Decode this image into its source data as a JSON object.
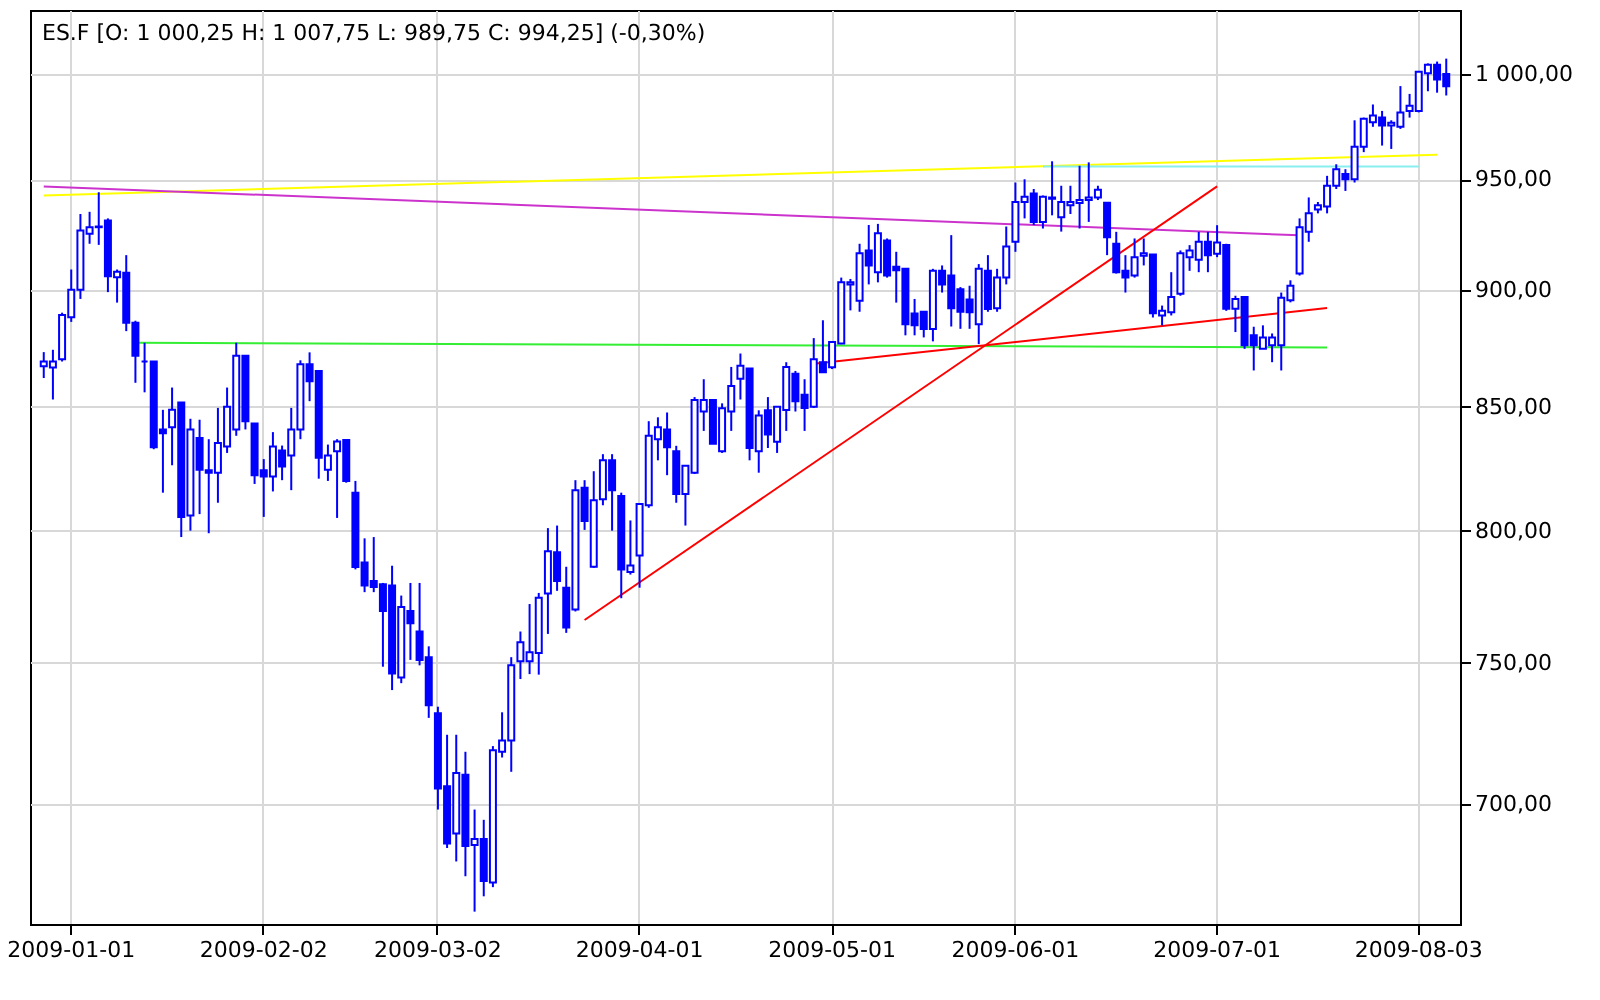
{
  "chart_data": {
    "type": "candlestick",
    "title": "ES.F [O: 1 000,25  H: 1 007,75  L: 989,75  C: 994,25] (-0,30%)",
    "categories": [
      null,
      null,
      null,
      "2009-01-01",
      null,
      null,
      null,
      null,
      null,
      null,
      null,
      null,
      null,
      null,
      null,
      null,
      null,
      null,
      null,
      null,
      null,
      null,
      null,
      null,
      "2009-02-02",
      null,
      null,
      null,
      null,
      null,
      null,
      null,
      null,
      null,
      null,
      null,
      null,
      null,
      null,
      null,
      null,
      null,
      null,
      "2009-03-02",
      null,
      null,
      null,
      null,
      null,
      null,
      null,
      null,
      null,
      null,
      null,
      null,
      null,
      null,
      null,
      null,
      null,
      null,
      null,
      null,
      null,
      "2009-04-01",
      null,
      null,
      null,
      null,
      null,
      null,
      null,
      null,
      null,
      null,
      null,
      null,
      null,
      null,
      null,
      null,
      null,
      null,
      null,
      null,
      "2009-05-01",
      null,
      null,
      null,
      null,
      null,
      null,
      null,
      null,
      null,
      null,
      null,
      null,
      null,
      null,
      null,
      null,
      null,
      null,
      null,
      "2009-06-01",
      null,
      null,
      null,
      null,
      null,
      null,
      null,
      null,
      null,
      null,
      null,
      null,
      null,
      null,
      null,
      null,
      null,
      null,
      null,
      null,
      null,
      "2009-07-01",
      null,
      null,
      null,
      null,
      null,
      null,
      null,
      null,
      null,
      null,
      null,
      null,
      null,
      null,
      null,
      null,
      null,
      null,
      null,
      null,
      null,
      "2009-08-03",
      null,
      null,
      null
    ],
    "color": "#0000ff",
    "ohlc": [
      [
        867,
        873,
        862,
        869
      ],
      [
        866.5,
        874,
        853,
        869
      ],
      [
        870,
        890,
        869,
        889
      ],
      [
        888,
        909,
        886,
        900
      ],
      [
        900,
        934,
        896,
        926.5
      ],
      [
        925,
        935,
        920.5,
        928
      ],
      [
        928,
        944,
        920,
        928.3
      ],
      [
        931,
        932,
        899,
        906
      ],
      [
        905.6,
        909,
        894.4,
        908
      ],
      [
        907.5,
        915.4,
        882,
        885.6
      ],
      [
        885.6,
        886.5,
        860,
        871.5
      ],
      [
        869,
        877,
        856,
        869
      ],
      [
        869,
        869,
        832.5,
        833.3
      ],
      [
        840.6,
        848.7,
        815,
        839
      ],
      [
        841.5,
        858,
        826,
        848.7
      ],
      [
        851.7,
        851.7,
        797.5,
        805.4
      ],
      [
        806,
        845,
        800,
        840.6
      ],
      [
        837.1,
        844.6,
        806.5,
        824.2
      ],
      [
        824,
        836.6,
        799,
        823
      ],
      [
        823,
        849.5,
        811,
        835
      ],
      [
        833.6,
        858,
        831,
        850
      ],
      [
        840.6,
        877,
        838,
        871.5
      ],
      [
        871.5,
        871.5,
        840.6,
        844
      ],
      [
        843,
        843,
        818.5,
        822
      ],
      [
        824,
        828.5,
        805.4,
        821.5
      ],
      [
        821.5,
        839.5,
        815.5,
        833.6
      ],
      [
        832,
        834,
        820,
        825.5
      ],
      [
        830,
        849.5,
        816,
        840.6
      ],
      [
        840.6,
        869.5,
        836.6,
        867.8
      ],
      [
        867.8,
        872.9,
        852.3,
        860.6
      ],
      [
        865,
        865,
        820.6,
        829
      ],
      [
        824.2,
        834.4,
        819.7,
        830
      ],
      [
        831.7,
        836.6,
        805,
        835.7
      ],
      [
        836.3,
        836.3,
        819,
        819.7
      ],
      [
        815,
        819.7,
        785,
        785.9
      ],
      [
        787.6,
        797,
        776.3,
        778.8
      ],
      [
        780.5,
        797.5,
        776.3,
        778.3
      ],
      [
        779.3,
        779.8,
        748.5,
        769.2
      ],
      [
        778.8,
        786.4,
        740,
        746
      ],
      [
        744.6,
        775,
        742.5,
        770.7
      ],
      [
        769.2,
        779.8,
        751,
        764.6
      ],
      [
        761.5,
        779.8,
        749,
        751
      ],
      [
        752,
        756,
        730,
        734.5
      ],
      [
        731.7,
        734,
        698,
        705.2
      ],
      [
        706,
        724,
        685,
        686.5
      ],
      [
        689.9,
        724,
        680.5,
        710.6
      ],
      [
        710,
        718,
        675.6,
        685.7
      ],
      [
        686,
        698,
        664,
        688
      ],
      [
        688,
        694.5,
        669,
        674
      ],
      [
        673.5,
        720,
        672,
        718.5
      ],
      [
        718,
        732,
        716,
        722
      ],
      [
        722,
        752,
        711,
        749
      ],
      [
        750.5,
        761.5,
        744,
        757.5
      ],
      [
        750.5,
        771.8,
        745.8,
        753.8
      ],
      [
        753.5,
        776,
        745.6,
        774.2
      ],
      [
        775.8,
        801,
        760.6,
        792
      ],
      [
        791.6,
        802,
        776.8,
        780.5
      ],
      [
        778,
        786,
        761,
        763
      ],
      [
        769.7,
        820,
        769,
        816
      ],
      [
        817,
        820,
        800.3,
        803.8
      ],
      [
        786,
        823.6,
        785.6,
        812
      ],
      [
        812.4,
        830.5,
        810,
        828
      ],
      [
        828,
        830.5,
        800,
        816
      ],
      [
        813.7,
        815,
        774,
        784.9
      ],
      [
        784,
        804,
        783,
        786.5
      ],
      [
        790.3,
        810.5,
        778,
        810.5
      ],
      [
        810,
        844,
        809,
        838
      ],
      [
        836.6,
        845.6,
        828,
        841.5
      ],
      [
        840.6,
        847.6,
        822,
        833.3
      ],
      [
        831.7,
        833.9,
        811,
        814.5
      ],
      [
        814.5,
        825.8,
        802,
        825.8
      ],
      [
        823,
        854,
        822.5,
        852.8
      ],
      [
        848,
        861.5,
        840,
        852.8
      ],
      [
        852.8,
        852.8,
        834.7,
        834.7
      ],
      [
        831.7,
        851.4,
        831,
        849.4
      ],
      [
        848,
        866.7,
        840,
        858.6
      ],
      [
        861.7,
        872.4,
        853,
        867.2
      ],
      [
        866,
        866,
        828,
        833
      ],
      [
        831.7,
        848.5,
        823,
        846.3
      ],
      [
        848.5,
        854,
        833,
        838.5
      ],
      [
        835.6,
        850,
        831,
        850
      ],
      [
        848.6,
        868.7,
        840,
        866.7
      ],
      [
        863.8,
        865,
        848,
        852.3
      ],
      [
        855,
        861.5,
        840,
        849.5
      ],
      [
        850,
        879,
        849.5,
        870
      ],
      [
        868.7,
        886.7,
        864.4,
        864.4
      ],
      [
        866.6,
        877.3,
        865.8,
        877.3
      ],
      [
        876.7,
        905.4,
        876.4,
        903.3
      ],
      [
        902.4,
        904.8,
        891,
        903.3
      ],
      [
        895.2,
        920.5,
        890.4,
        916.3
      ],
      [
        917.5,
        929,
        902.4,
        910.8
      ],
      [
        907.8,
        929.5,
        903.3,
        925.3
      ],
      [
        922,
        922.9,
        905.4,
        906.3
      ],
      [
        910.2,
        916.9,
        894.4,
        908.7
      ],
      [
        909.3,
        909.3,
        880.2,
        885
      ],
      [
        889.6,
        896,
        880.2,
        884.5
      ],
      [
        890.4,
        890.4,
        879.3,
        882.9
      ],
      [
        882.9,
        909.3,
        877.6,
        908.4
      ],
      [
        908.4,
        910.8,
        898.8,
        902.4
      ],
      [
        906.3,
        924.4,
        884,
        891.9
      ],
      [
        900.3,
        901.2,
        883,
        890.4
      ],
      [
        895.8,
        901.8,
        883,
        890.2
      ],
      [
        885,
        911.4,
        876.4,
        909.3
      ],
      [
        908.4,
        915.4,
        890.4,
        891.6
      ],
      [
        891.9,
        909.3,
        890.4,
        905.4
      ],
      [
        905.4,
        928.3,
        902.4,
        919.3
      ],
      [
        921.4,
        948.5,
        916.9,
        939.5
      ],
      [
        939.5,
        950,
        932,
        941.9
      ],
      [
        943.4,
        945.5,
        929,
        930.4
      ],
      [
        930.4,
        942.5,
        927.4,
        941.9
      ],
      [
        941,
        958.4,
        933.4,
        941.6
      ],
      [
        932.5,
        947,
        926,
        939.5
      ],
      [
        938,
        947,
        934,
        939.5
      ],
      [
        939,
        956.3,
        927.4,
        940.4
      ],
      [
        940.4,
        957.9,
        930.4,
        941.6
      ],
      [
        941.6,
        947,
        940.4,
        945.2
      ],
      [
        939.2,
        939.2,
        915.4,
        923.5
      ],
      [
        920.5,
        925.9,
        907.2,
        907.8
      ],
      [
        908.4,
        915.4,
        898.8,
        905.4
      ],
      [
        906.3,
        922.9,
        905.4,
        914.5
      ],
      [
        915.1,
        922.9,
        910.8,
        916.3
      ],
      [
        915.7,
        915.7,
        887.9,
        889.7
      ],
      [
        888.8,
        893.1,
        884.5,
        890.8
      ],
      [
        890.2,
        907.8,
        888.8,
        896.8
      ],
      [
        898.3,
        917.5,
        897.4,
        916.3
      ],
      [
        914.5,
        919.9,
        908.4,
        917.5
      ],
      [
        913.3,
        925.9,
        907.8,
        921.4
      ],
      [
        921.4,
        925.9,
        907.8,
        915.4
      ],
      [
        916,
        928.9,
        914.5,
        921.1
      ],
      [
        919.9,
        920.5,
        890.8,
        891.7
      ],
      [
        891.7,
        897.4,
        881.6,
        896
      ],
      [
        896.8,
        896.8,
        874.4,
        875.9
      ],
      [
        880.2,
        883.9,
        865.2,
        875.9
      ],
      [
        874.4,
        884.5,
        874.4,
        879.3
      ],
      [
        875.9,
        881,
        868.7,
        879.3
      ],
      [
        875.9,
        898.8,
        865.2,
        896.5
      ],
      [
        895.4,
        904.2,
        894.5,
        901.8
      ],
      [
        907.2,
        932,
        906.3,
        928
      ],
      [
        925.9,
        941.6,
        921.4,
        934.3
      ],
      [
        936.1,
        939.5,
        934.3,
        938
      ],
      [
        937.4,
        951.6,
        934.3,
        947
      ],
      [
        947,
        957,
        945.5,
        954.7
      ],
      [
        952.5,
        954.7,
        944.6,
        950
      ],
      [
        950,
        977.8,
        948.5,
        965.2
      ],
      [
        965.2,
        979.1,
        962.7,
        978.5
      ],
      [
        976.9,
        985.4,
        974.7,
        980.1
      ],
      [
        979.1,
        982.3,
        965.8,
        975.3
      ],
      [
        975.3,
        977.8,
        964.2,
        976.6
      ],
      [
        974.7,
        994.3,
        973.7,
        981.6
      ],
      [
        982.3,
        990.5,
        979.1,
        984.8
      ],
      [
        982.3,
        1001.3,
        981.6,
        1001.3
      ],
      [
        1000.6,
        1005.4,
        991.8,
        1004.7
      ],
      [
        1004.7,
        1006.3,
        991.1,
        997.5
      ],
      [
        1000.25,
        1007.75,
        989.75,
        994.25
      ]
    ],
    "series": [
      {
        "type": "line",
        "color": "#ffff00",
        "values": [
          942.5,
          null,
          null,
          null,
          null,
          null,
          null,
          null,
          null,
          null,
          null,
          null,
          null,
          null,
          null,
          null,
          null,
          null,
          null,
          null,
          null,
          null,
          null,
          null,
          null,
          null,
          null,
          null,
          null,
          null,
          null,
          null,
          null,
          null,
          null,
          null,
          null,
          null,
          null,
          null,
          null,
          null,
          null,
          null,
          null,
          null,
          null,
          null,
          null,
          null,
          null,
          null,
          null,
          null,
          null,
          null,
          null,
          null,
          null,
          null,
          null,
          null,
          null,
          null,
          null,
          null,
          null,
          null,
          null,
          null,
          null,
          null,
          null,
          null,
          null,
          null,
          null,
          null,
          null,
          null,
          null,
          null,
          null,
          null,
          null,
          null,
          null,
          null,
          null,
          null,
          null,
          null,
          null,
          null,
          null,
          null,
          null,
          null,
          null,
          null,
          null,
          null,
          null,
          null,
          null,
          null,
          null,
          null,
          null,
          null,
          null,
          null,
          null,
          null,
          null,
          null,
          null,
          null,
          null,
          null,
          null,
          null,
          null,
          null,
          null,
          null,
          null,
          null,
          null,
          null,
          null,
          null,
          null,
          null,
          null,
          null,
          null,
          null,
          null,
          null,
          null,
          null,
          null,
          null,
          null,
          null,
          null,
          null,
          null,
          null,
          null,
          null,
          961.5,
          null
        ]
      },
      {
        "type": "line",
        "color": "#cc33cc",
        "values": [
          946.7,
          null,
          null,
          null,
          null,
          null,
          null,
          null,
          null,
          null,
          null,
          null,
          null,
          null,
          null,
          null,
          null,
          null,
          null,
          null,
          null,
          null,
          null,
          null,
          null,
          null,
          null,
          null,
          null,
          null,
          null,
          null,
          null,
          null,
          null,
          null,
          null,
          null,
          null,
          null,
          null,
          null,
          null,
          null,
          null,
          null,
          null,
          null,
          null,
          null,
          null,
          null,
          null,
          null,
          null,
          null,
          null,
          null,
          null,
          null,
          null,
          null,
          null,
          null,
          null,
          null,
          null,
          null,
          null,
          null,
          null,
          null,
          null,
          null,
          null,
          null,
          null,
          null,
          null,
          null,
          null,
          null,
          null,
          null,
          null,
          null,
          null,
          null,
          null,
          null,
          null,
          null,
          null,
          null,
          null,
          null,
          null,
          null,
          null,
          null,
          null,
          null,
          null,
          null,
          null,
          null,
          null,
          null,
          null,
          null,
          null,
          null,
          null,
          null,
          null,
          null,
          null,
          null,
          null,
          null,
          null,
          null,
          null,
          null,
          null,
          null,
          null,
          null,
          null,
          null,
          null,
          null,
          null,
          null,
          null,
          null,
          null,
          924.3,
          null,
          null,
          null,
          null,
          null,
          null,
          null,
          null,
          null,
          null,
          null,
          null,
          null,
          null,
          null,
          null
        ]
      },
      {
        "type": "line",
        "color": "#33ee33",
        "values": [
          null,
          null,
          null,
          null,
          null,
          null,
          null,
          null,
          null,
          null,
          877,
          null,
          null,
          null,
          null,
          null,
          null,
          null,
          null,
          null,
          null,
          null,
          null,
          null,
          null,
          null,
          null,
          null,
          null,
          null,
          null,
          null,
          null,
          null,
          null,
          null,
          null,
          null,
          null,
          null,
          null,
          null,
          null,
          null,
          null,
          null,
          null,
          null,
          null,
          null,
          null,
          null,
          null,
          null,
          null,
          null,
          null,
          null,
          null,
          null,
          null,
          null,
          null,
          null,
          null,
          null,
          null,
          null,
          null,
          null,
          null,
          null,
          null,
          null,
          null,
          null,
          null,
          null,
          null,
          null,
          null,
          null,
          null,
          null,
          null,
          null,
          null,
          null,
          null,
          null,
          null,
          null,
          null,
          null,
          null,
          null,
          null,
          null,
          null,
          null,
          null,
          null,
          null,
          null,
          null,
          null,
          null,
          null,
          null,
          null,
          null,
          null,
          null,
          null,
          null,
          null,
          null,
          null,
          null,
          null,
          null,
          null,
          null,
          null,
          null,
          null,
          null,
          null,
          null,
          null,
          null,
          null,
          null,
          null,
          null,
          null,
          null,
          null,
          null,
          null,
          875,
          null,
          null,
          null,
          null,
          null,
          null,
          null,
          null,
          null,
          null,
          null,
          null,
          null
        ]
      },
      {
        "type": "line",
        "color": "#ff0000",
        "values": [
          null,
          null,
          null,
          null,
          null,
          null,
          null,
          null,
          null,
          null,
          null,
          null,
          null,
          null,
          null,
          null,
          null,
          null,
          null,
          null,
          null,
          null,
          null,
          null,
          null,
          null,
          null,
          null,
          null,
          null,
          null,
          null,
          null,
          null,
          null,
          null,
          null,
          null,
          null,
          null,
          null,
          null,
          null,
          null,
          null,
          null,
          null,
          null,
          null,
          null,
          null,
          null,
          null,
          null,
          null,
          null,
          null,
          null,
          null,
          765.8,
          null,
          null,
          null,
          null,
          null,
          null,
          null,
          null,
          null,
          null,
          null,
          null,
          null,
          null,
          null,
          null,
          null,
          null,
          null,
          null,
          null,
          null,
          null,
          null,
          null,
          null,
          null,
          null,
          null,
          null,
          null,
          null,
          null,
          null,
          null,
          null,
          null,
          null,
          null,
          null,
          null,
          null,
          null,
          null,
          null,
          null,
          null,
          null,
          null,
          null,
          null,
          null,
          null,
          null,
          null,
          null,
          null,
          null,
          null,
          null,
          null,
          null,
          null,
          null,
          null,
          null,
          null,
          null,
          946.7,
          null,
          null,
          null,
          null,
          null,
          null,
          null,
          null,
          null,
          null,
          null,
          null,
          null,
          null,
          null,
          null,
          null,
          null,
          null,
          null,
          null,
          null,
          null,
          null,
          null
        ]
      },
      {
        "type": "line",
        "color": "#ff0000",
        "values": [
          null,
          null,
          null,
          null,
          null,
          null,
          null,
          null,
          null,
          null,
          null,
          null,
          null,
          null,
          null,
          null,
          null,
          null,
          null,
          null,
          null,
          null,
          null,
          null,
          null,
          null,
          null,
          null,
          null,
          null,
          null,
          null,
          null,
          null,
          null,
          null,
          null,
          null,
          null,
          null,
          null,
          null,
          null,
          null,
          null,
          null,
          null,
          null,
          null,
          null,
          null,
          null,
          null,
          null,
          null,
          null,
          null,
          null,
          null,
          null,
          null,
          null,
          null,
          null,
          null,
          null,
          null,
          null,
          null,
          null,
          null,
          null,
          null,
          null,
          null,
          null,
          null,
          null,
          null,
          null,
          null,
          null,
          null,
          null,
          868,
          null,
          null,
          null,
          null,
          null,
          null,
          null,
          null,
          null,
          null,
          null,
          null,
          null,
          null,
          null,
          null,
          null,
          null,
          null,
          null,
          null,
          null,
          null,
          null,
          null,
          null,
          null,
          null,
          null,
          null,
          null,
          null,
          null,
          null,
          null,
          null,
          null,
          null,
          null,
          null,
          null,
          null,
          null,
          null,
          null,
          null,
          null,
          null,
          null,
          null,
          null,
          null,
          null,
          null,
          null,
          892,
          null,
          null,
          null,
          null,
          null,
          null,
          null,
          null,
          null,
          null,
          null,
          null,
          null
        ]
      },
      {
        "type": "line",
        "color": "#88eeee",
        "values": [
          null,
          null,
          null,
          null,
          null,
          null,
          null,
          null,
          null,
          null,
          null,
          null,
          null,
          null,
          null,
          null,
          null,
          null,
          null,
          null,
          null,
          null,
          null,
          null,
          null,
          null,
          null,
          null,
          null,
          null,
          null,
          null,
          null,
          null,
          null,
          null,
          null,
          null,
          null,
          null,
          null,
          null,
          null,
          null,
          null,
          null,
          null,
          null,
          null,
          null,
          null,
          null,
          null,
          null,
          null,
          null,
          null,
          null,
          null,
          null,
          null,
          null,
          null,
          null,
          null,
          null,
          null,
          null,
          null,
          null,
          null,
          null,
          null,
          null,
          null,
          null,
          null,
          null,
          null,
          null,
          null,
          null,
          null,
          null,
          null,
          null,
          null,
          null,
          null,
          null,
          null,
          null,
          null,
          null,
          null,
          null,
          null,
          null,
          null,
          null,
          null,
          null,
          null,
          null,
          null,
          null,
          null,
          null,
          null,
          956,
          null,
          null,
          null,
          null,
          null,
          null,
          null,
          null,
          null,
          null,
          null,
          null,
          null,
          null,
          null,
          null,
          null,
          null,
          null,
          null,
          null,
          null,
          null,
          null,
          null,
          null,
          null,
          null,
          null,
          null,
          null,
          null,
          null,
          null,
          null,
          null,
          null,
          null,
          null,
          null,
          956,
          null,
          null,
          null
        ]
      }
    ],
    "ylim": [
      660,
      1032
    ],
    "log": true,
    "yticks": [
      {
        "value": 700,
        "label": "700,00"
      },
      {
        "value": 750,
        "label": "750,00"
      },
      {
        "value": 800,
        "label": "800,00"
      },
      {
        "value": 850,
        "label": "850,00"
      },
      {
        "value": 900,
        "label": "900,00"
      },
      {
        "value": 950,
        "label": "950,00"
      },
      {
        "value": 1000,
        "label": "1 000,00"
      }
    ],
    "grid": true
  }
}
